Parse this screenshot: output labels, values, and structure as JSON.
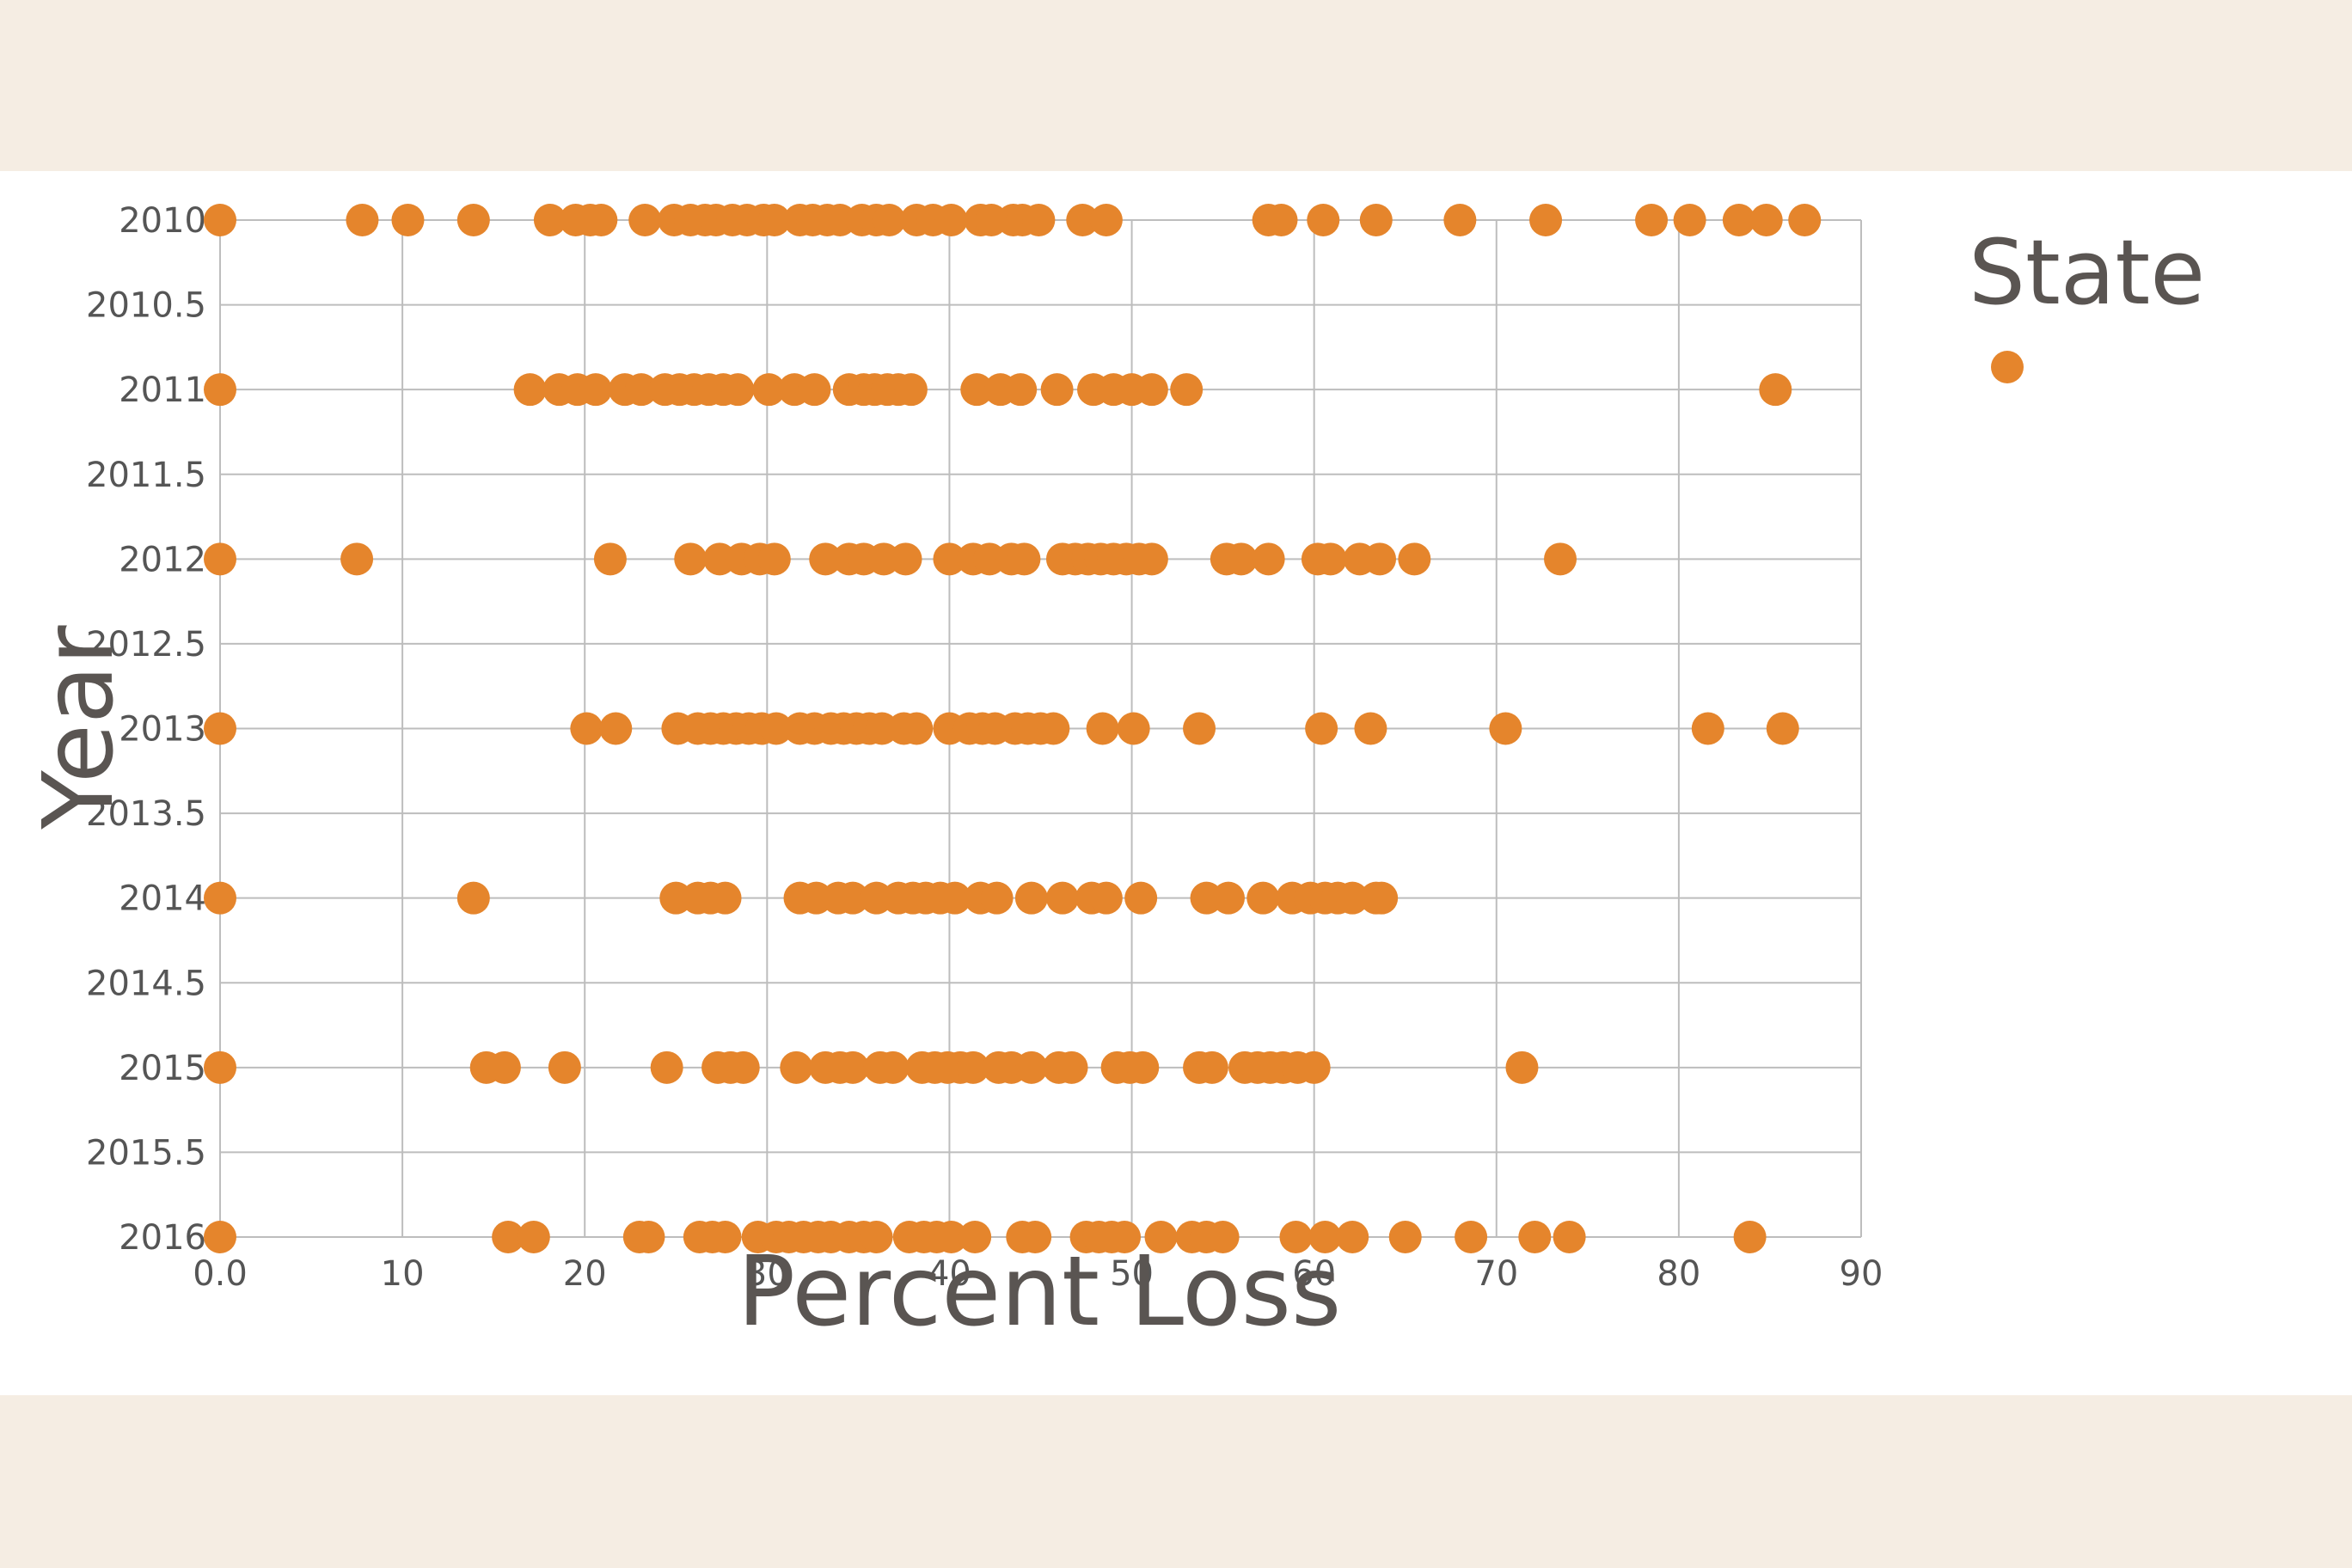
{
  "colors": {
    "page_background": "#f5ede3",
    "panel_background": "#ffffff",
    "marker": "#e5852c",
    "grid": "#bdbdbd",
    "text": "#5a5552"
  },
  "chart_data": {
    "type": "scatter",
    "title": "",
    "xlabel": "Percent Loss",
    "ylabel": "Year",
    "xlim": [
      0,
      90
    ],
    "ylim": [
      2010,
      2016
    ],
    "y_reversed": true,
    "grid": true,
    "legend": {
      "title": "State",
      "placement": "right",
      "entries": [
        ""
      ]
    },
    "x_ticks": [
      "0.0",
      "10",
      "20",
      "30",
      "40",
      "50",
      "60",
      "70",
      "80",
      "90"
    ],
    "x_tick_values": [
      0,
      10,
      20,
      30,
      40,
      50,
      60,
      70,
      80,
      90
    ],
    "y_ticks": [
      "2010",
      "2010.5",
      "2011",
      "2011.5",
      "2012",
      "2012.5",
      "2013",
      "2013.5",
      "2014",
      "2014.5",
      "2015",
      "2015.5",
      "2016"
    ],
    "y_tick_values": [
      2010,
      2010.5,
      2011,
      2011.5,
      2012,
      2012.5,
      2013,
      2013.5,
      2014,
      2014.5,
      2015,
      2015.5,
      2016
    ],
    "series": [
      {
        "color": "#e5852c",
        "points": [
          {
            "year": 2010,
            "values": [
              0,
              7.8,
              10.3,
              13.9,
              18.1,
              19.5,
              20.3,
              20.9,
              23.3,
              24.9,
              25.8,
              26.6,
              27.2,
              28.1,
              28.9,
              29.8,
              30.4,
              31.8,
              32.5,
              33.3,
              34.0,
              35.2,
              36.0,
              36.7,
              38.2,
              39.1,
              40.1,
              41.7,
              42.3,
              43.5,
              44.0,
              44.9,
              47.3,
              48.6,
              57.5,
              58.2,
              60.5,
              63.4,
              68.0,
              72.7,
              78.5,
              80.6,
              83.3,
              84.8,
              86.9
            ]
          },
          {
            "year": 2011,
            "values": [
              0,
              17.0,
              18.6,
              19.6,
              20.6,
              22.2,
              23.1,
              24.4,
              25.2,
              26.0,
              26.8,
              27.6,
              28.4,
              30.1,
              31.5,
              32.6,
              34.5,
              35.3,
              35.9,
              36.6,
              37.2,
              37.9,
              41.5,
              42.8,
              43.9,
              45.9,
              47.9,
              49.0,
              50.0,
              51.1,
              53.0,
              85.3
            ]
          },
          {
            "year": 2012,
            "values": [
              0,
              7.5,
              21.4,
              25.8,
              27.4,
              28.6,
              29.6,
              30.4,
              33.2,
              34.5,
              35.3,
              36.4,
              37.6,
              40.0,
              41.3,
              42.2,
              43.4,
              44.1,
              46.2,
              46.9,
              47.6,
              48.3,
              49.0,
              49.7,
              50.4,
              51.1,
              55.2,
              56.0,
              57.5,
              60.2,
              60.9,
              62.5,
              63.6,
              65.5,
              73.5
            ]
          },
          {
            "year": 2013,
            "values": [
              0,
              20.1,
              21.7,
              25.1,
              26.2,
              26.9,
              27.6,
              28.3,
              29.0,
              29.7,
              30.5,
              31.8,
              32.6,
              33.5,
              34.2,
              34.9,
              35.6,
              36.3,
              37.5,
              38.2,
              40.0,
              41.1,
              41.8,
              42.5,
              43.6,
              44.3,
              45.0,
              45.7,
              48.4,
              50.1,
              53.7,
              60.4,
              63.1,
              70.5,
              81.6,
              85.7
            ]
          },
          {
            "year": 2014,
            "values": [
              0,
              13.9,
              25.0,
              26.2,
              26.9,
              27.7,
              31.8,
              32.7,
              33.9,
              34.7,
              36.0,
              37.2,
              38.0,
              38.7,
              39.5,
              40.3,
              41.7,
              42.6,
              44.5,
              46.2,
              47.8,
              48.6,
              50.5,
              54.1,
              55.3,
              57.2,
              58.8,
              59.8,
              60.6,
              61.3,
              62.1,
              63.4,
              63.7
            ]
          },
          {
            "year": 2015,
            "values": [
              0,
              14.6,
              15.6,
              18.9,
              24.5,
              27.3,
              28.0,
              28.7,
              31.6,
              33.2,
              34.0,
              34.7,
              36.2,
              36.9,
              38.5,
              39.2,
              39.9,
              40.6,
              41.3,
              42.7,
              43.4,
              44.5,
              46.0,
              46.7,
              49.2,
              49.9,
              50.6,
              53.7,
              54.4,
              56.2,
              56.9,
              57.6,
              58.3,
              59.1,
              60.0,
              71.4
            ]
          },
          {
            "year": 2016,
            "values": [
              0,
              15.8,
              17.2,
              23.0,
              23.5,
              26.3,
              27.0,
              27.7,
              29.5,
              30.5,
              31.2,
              32.0,
              32.8,
              33.5,
              34.5,
              35.3,
              36.0,
              37.8,
              38.6,
              39.3,
              40.1,
              41.4,
              44.0,
              44.7,
              47.5,
              48.2,
              48.9,
              49.6,
              51.6,
              53.3,
              54.1,
              55.0,
              59.0,
              60.6,
              62.1,
              65.0,
              68.6,
              72.1,
              74.0,
              83.9
            ]
          }
        ]
      }
    ]
  }
}
